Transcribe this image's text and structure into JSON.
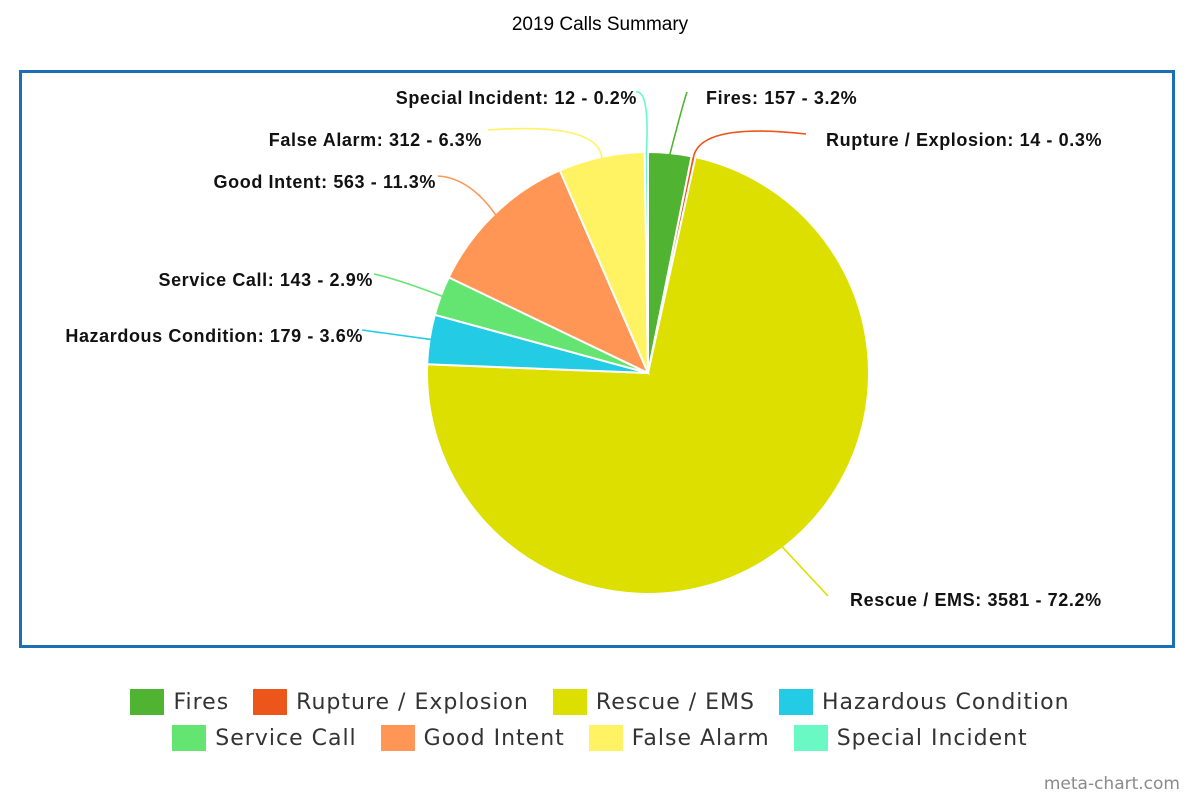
{
  "chart_data": {
    "type": "pie",
    "title": "2019 Calls Summary",
    "legend_position": "bottom",
    "slices": [
      {
        "name": "Fires",
        "value": 157,
        "percent": "3.2%",
        "color": "#50b432"
      },
      {
        "name": "Rupture / Explosion",
        "value": 14,
        "percent": "0.3%",
        "color": "#ed561b"
      },
      {
        "name": "Rescue / EMS",
        "value": 3581,
        "percent": "72.2%",
        "color": "#dddf00"
      },
      {
        "name": "Hazardous Condition",
        "value": 179,
        "percent": "3.6%",
        "color": "#24cbe5"
      },
      {
        "name": "Service Call",
        "value": 143,
        "percent": "2.9%",
        "color": "#64e572"
      },
      {
        "name": "Good Intent",
        "value": 563,
        "percent": "11.3%",
        "color": "#ff9655"
      },
      {
        "name": "False Alarm",
        "value": 312,
        "percent": "6.3%",
        "color": "#fff263"
      },
      {
        "name": "Special Incident",
        "value": 12,
        "percent": "0.2%",
        "color": "#6af9c4"
      }
    ],
    "data_labels": [
      "Fires: 157 - 3.2%",
      "Rupture / Explosion: 14 - 0.3%",
      "Rescue / EMS: 3581 - 72.2%",
      "Hazardous Condition: 179 - 3.6%",
      "Service Call: 143 - 2.9%",
      "Good Intent: 563 - 11.3%",
      "False Alarm: 312 - 6.3%",
      "Special Incident: 12 - 0.2%"
    ]
  },
  "watermark": "meta-chart.com",
  "colors": {
    "frame_border": "#1a6fb5"
  }
}
